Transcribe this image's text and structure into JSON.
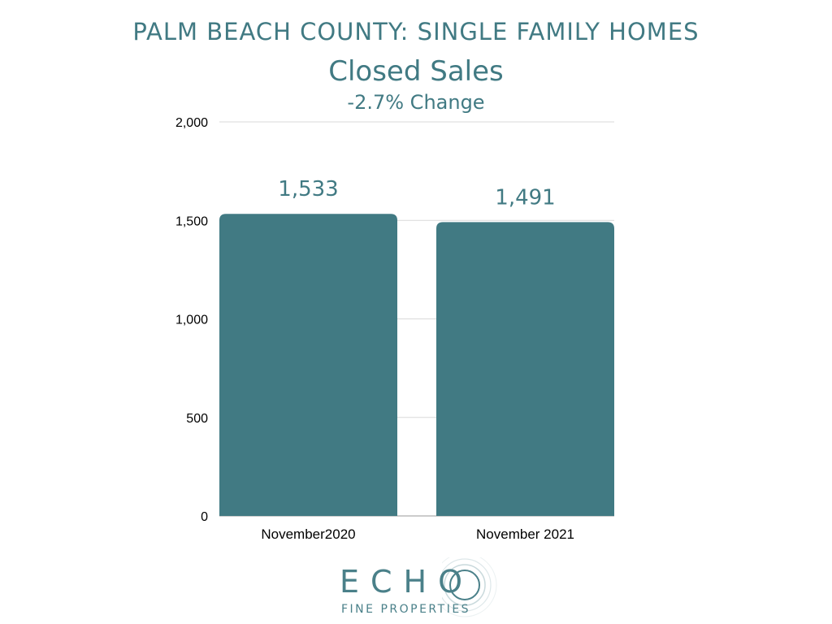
{
  "header": {
    "title": "PALM BEACH COUNTY: SINGLE FAMILY HOMES",
    "subtitle": "Closed Sales",
    "change": "-2.7% Change"
  },
  "colors": {
    "bar": "#417a83",
    "text_accent": "#417a83",
    "gridline": "#d9d9d9",
    "axis_label": "#000000"
  },
  "chart_data": {
    "type": "bar",
    "title": "Closed Sales",
    "subtitle": "-2.7% Change",
    "categories": [
      "November2020",
      "November 2021"
    ],
    "values": [
      1533,
      1491
    ],
    "data_labels": [
      "1,533",
      "1,491"
    ],
    "ylim": [
      0,
      2000
    ],
    "yticks": [
      0,
      500,
      1000,
      1500,
      2000
    ],
    "ytick_labels": [
      "0",
      "500",
      "1,000",
      "1,500",
      "2,000"
    ],
    "grid": true,
    "legend": "none"
  },
  "logo": {
    "word": "ECHO",
    "tagline": "FINE PROPERTIES"
  }
}
